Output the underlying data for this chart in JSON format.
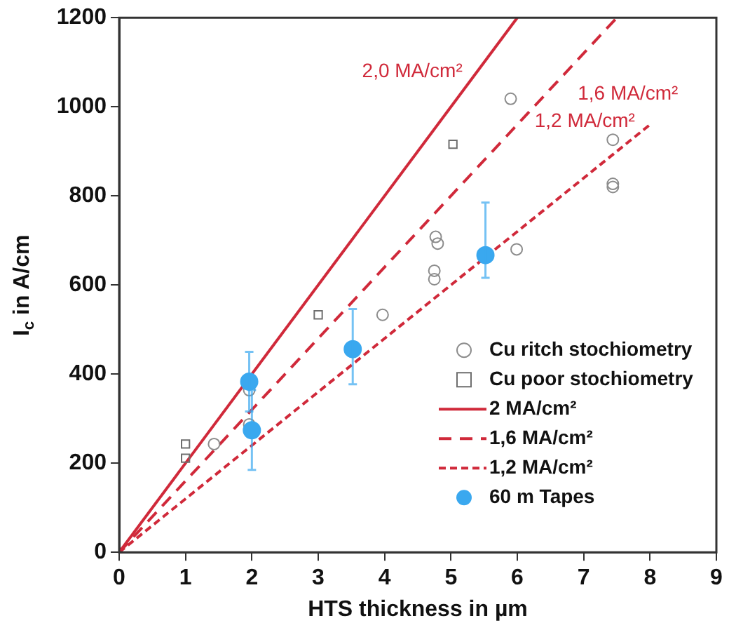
{
  "chart_data": {
    "type": "scatter",
    "xlabel": "HTS thickness in µm",
    "ylabel": "I$_{c}$ in A/cm",
    "xlim": [
      0,
      9
    ],
    "xticks": [
      0,
      1,
      2,
      3,
      4,
      5,
      6,
      7,
      8,
      9
    ],
    "ylim": [
      0,
      1200
    ],
    "yticks": [
      0,
      200,
      400,
      600,
      800,
      1000,
      1200
    ],
    "grid": false,
    "legend": "bottom right",
    "series": [
      {
        "name": "Cu ritch stochiometry",
        "marker": "circle",
        "color": "#8c8c8c",
        "x": [
          1.43,
          1.96,
          1.96,
          3.97,
          4.75,
          4.75,
          4.77,
          4.8,
          5.9,
          5.99,
          7.44,
          7.44,
          7.44
        ],
        "values": [
          243,
          364,
          287,
          533,
          632,
          613,
          708,
          693,
          1018,
          680,
          926,
          827,
          820
        ]
      },
      {
        "name": "Cu poor stochiometry",
        "marker": "square",
        "color": "#6e6e6e",
        "x": [
          1.0,
          1.0,
          3.0,
          5.03
        ],
        "values": [
          243,
          211,
          533,
          916
        ]
      },
      {
        "name": "2 MA/cm²",
        "type": "line",
        "line_style": "solid",
        "color": "#d0293a",
        "x": [
          0,
          6
        ],
        "values": [
          0,
          1200
        ]
      },
      {
        "name": "1,6 MA/cm²",
        "type": "line",
        "line_style": "dashed",
        "color": "#d0293a",
        "x": [
          0,
          7.5
        ],
        "values": [
          0,
          1200
        ]
      },
      {
        "name": "1,2 MA/cm²",
        "type": "line",
        "line_style": "dotted",
        "color": "#d0293a",
        "x": [
          0,
          8
        ],
        "values": [
          0,
          960
        ]
      },
      {
        "name": "60 m Tapes",
        "marker": "circle",
        "color": "#3aa8ef",
        "x": [
          1.96,
          2.0,
          3.52,
          5.52
        ],
        "values": [
          383,
          274,
          456,
          667
        ],
        "errors": [
          [
            316,
            450
          ],
          [
            185,
            364
          ],
          [
            377,
            546
          ],
          [
            616,
            785
          ]
        ]
      }
    ],
    "annotations": [
      {
        "text": "2,0 MA/cm²",
        "x": 5.3,
        "y": 1060
      },
      {
        "text": "1,6 MA/cm²",
        "x": 6.7,
        "y": 1072
      },
      {
        "text": "1,2 MA/cm²",
        "x": 7.9,
        "y": 948
      }
    ]
  }
}
